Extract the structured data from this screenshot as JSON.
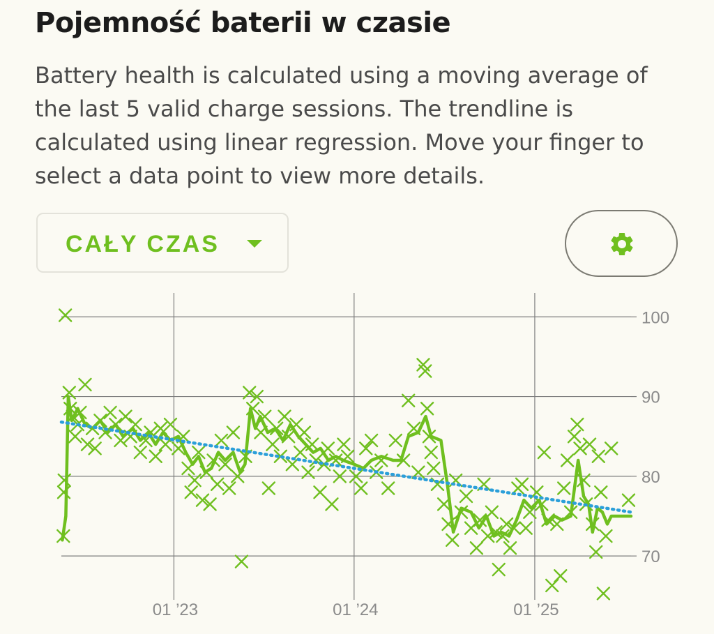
{
  "header": {
    "title": "Pojemność baterii w czasie",
    "description": "Battery health is calculated using a moving average of the last 5 valid charge sessions. The trendline is calculated using linear regression. Move your finger to select a data point to view more details."
  },
  "controls": {
    "range_label": "CAŁY CZAS",
    "range_icon": "caret-down-icon",
    "settings_icon": "gear-icon"
  },
  "colors": {
    "accent": "#6fbf1f",
    "trend": "#2b9fd9",
    "grid": "#7d7d7d",
    "background": "#fbfaf3"
  },
  "chart_data": {
    "type": "line",
    "x_axis": {
      "type": "date",
      "min": "2022-05-18",
      "max": "2025-07-15",
      "ticks": [
        {
          "date": "2023-01-01",
          "label": "01 ’23"
        },
        {
          "date": "2024-01-01",
          "label": "01 ’24"
        },
        {
          "date": "2025-01-01",
          "label": "01 ’25"
        }
      ]
    },
    "y_axis": {
      "position": "right",
      "ylim": [
        64.5,
        103
      ],
      "ticks": [
        100,
        90,
        80,
        70
      ],
      "grid": true
    },
    "series": [
      {
        "kind": "scatter",
        "marker": "x",
        "color": "#6fbf1f",
        "points": [
          [
            "2022-05-26",
            100.2
          ],
          [
            "2022-05-22",
            72.5
          ],
          [
            "2022-05-23",
            78.0
          ],
          [
            "2022-05-24",
            79.5
          ],
          [
            "2022-06-03",
            90.5
          ],
          [
            "2022-06-05",
            88.5
          ],
          [
            "2022-06-10",
            87.5
          ],
          [
            "2022-06-15",
            85.0
          ],
          [
            "2022-06-20",
            86.5
          ],
          [
            "2022-06-25",
            88.0
          ],
          [
            "2022-07-05",
            91.5
          ],
          [
            "2022-07-10",
            84.0
          ],
          [
            "2022-07-20",
            86.0
          ],
          [
            "2022-07-25",
            83.5
          ],
          [
            "2022-08-05",
            87.0
          ],
          [
            "2022-08-15",
            85.5
          ],
          [
            "2022-08-25",
            88.0
          ],
          [
            "2022-09-05",
            86.5
          ],
          [
            "2022-09-15",
            84.5
          ],
          [
            "2022-09-25",
            87.5
          ],
          [
            "2022-10-05",
            85.0
          ],
          [
            "2022-10-15",
            86.5
          ],
          [
            "2022-10-25",
            83.0
          ],
          [
            "2022-11-05",
            84.5
          ],
          [
            "2022-11-15",
            85.5
          ],
          [
            "2022-11-25",
            82.5
          ],
          [
            "2022-12-05",
            86.0
          ],
          [
            "2022-12-15",
            84.0
          ],
          [
            "2022-12-25",
            86.5
          ],
          [
            "2023-01-10",
            83.5
          ],
          [
            "2023-01-20",
            85.0
          ],
          [
            "2023-01-30",
            81.0
          ],
          [
            "2023-02-05",
            78.0
          ],
          [
            "2023-02-12",
            79.5
          ],
          [
            "2023-02-20",
            83.0
          ],
          [
            "2023-02-28",
            77.0
          ],
          [
            "2023-03-08",
            80.5
          ],
          [
            "2023-03-15",
            76.5
          ],
          [
            "2023-03-22",
            82.0
          ],
          [
            "2023-03-30",
            79.0
          ],
          [
            "2023-04-07",
            84.5
          ],
          [
            "2023-04-15",
            81.5
          ],
          [
            "2023-04-23",
            78.5
          ],
          [
            "2023-05-01",
            85.5
          ],
          [
            "2023-05-10",
            80.0
          ],
          [
            "2023-05-18",
            69.3
          ],
          [
            "2023-05-26",
            82.5
          ],
          [
            "2023-06-03",
            90.5
          ],
          [
            "2023-06-10",
            88.5
          ],
          [
            "2023-06-18",
            90.0
          ],
          [
            "2023-06-26",
            85.5
          ],
          [
            "2023-07-04",
            87.5
          ],
          [
            "2023-07-12",
            78.5
          ],
          [
            "2023-07-20",
            84.0
          ],
          [
            "2023-07-28",
            86.0
          ],
          [
            "2023-08-05",
            82.5
          ],
          [
            "2023-08-13",
            87.5
          ],
          [
            "2023-08-21",
            85.0
          ],
          [
            "2023-08-29",
            81.5
          ],
          [
            "2023-09-06",
            86.5
          ],
          [
            "2023-09-14",
            83.0
          ],
          [
            "2023-09-22",
            85.5
          ],
          [
            "2023-09-30",
            80.5
          ],
          [
            "2023-10-08",
            84.0
          ],
          [
            "2023-10-16",
            82.0
          ],
          [
            "2023-10-24",
            78.0
          ],
          [
            "2023-11-01",
            81.5
          ],
          [
            "2023-11-09",
            83.5
          ],
          [
            "2023-11-17",
            76.5
          ],
          [
            "2023-11-25",
            82.0
          ],
          [
            "2023-12-03",
            80.0
          ],
          [
            "2023-12-11",
            84.0
          ],
          [
            "2023-12-19",
            82.5
          ],
          [
            "2024-01-05",
            80.0
          ],
          [
            "2024-01-15",
            78.5
          ],
          [
            "2024-01-25",
            83.5
          ],
          [
            "2024-02-05",
            84.5
          ],
          [
            "2024-02-15",
            80.5
          ],
          [
            "2024-02-25",
            82.0
          ],
          [
            "2024-03-10",
            78.5
          ],
          [
            "2024-03-25",
            84.5
          ],
          [
            "2024-04-10",
            82.0
          ],
          [
            "2024-04-20",
            89.5
          ],
          [
            "2024-05-01",
            86.0
          ],
          [
            "2024-05-10",
            80.5
          ],
          [
            "2024-05-20",
            94.0
          ],
          [
            "2024-05-24",
            93.2
          ],
          [
            "2024-05-28",
            88.5
          ],
          [
            "2024-06-01",
            85.0
          ],
          [
            "2024-06-05",
            83.0
          ],
          [
            "2024-06-10",
            81.0
          ],
          [
            "2024-06-18",
            79.0
          ],
          [
            "2024-07-01",
            76.5
          ],
          [
            "2024-07-10",
            74.0
          ],
          [
            "2024-07-18",
            72.0
          ],
          [
            "2024-07-25",
            79.5
          ],
          [
            "2024-08-05",
            75.5
          ],
          [
            "2024-08-15",
            77.5
          ],
          [
            "2024-08-25",
            73.5
          ],
          [
            "2024-09-05",
            71.0
          ],
          [
            "2024-09-12",
            74.5
          ],
          [
            "2024-09-20",
            79.0
          ],
          [
            "2024-09-28",
            72.5
          ],
          [
            "2024-10-06",
            75.5
          ],
          [
            "2024-10-14",
            73.0
          ],
          [
            "2024-10-20",
            68.3
          ],
          [
            "2024-10-28",
            72.5
          ],
          [
            "2024-11-05",
            74.0
          ],
          [
            "2024-11-12",
            71.0
          ],
          [
            "2024-11-20",
            73.5
          ],
          [
            "2024-11-28",
            78.5
          ],
          [
            "2024-12-06",
            79.0
          ],
          [
            "2024-12-14",
            73.5
          ],
          [
            "2024-12-22",
            75.5
          ],
          [
            "2025-01-05",
            78.0
          ],
          [
            "2025-01-15",
            76.5
          ],
          [
            "2025-01-20",
            83.0
          ],
          [
            "2025-01-28",
            74.5
          ],
          [
            "2025-02-05",
            66.3
          ],
          [
            "2025-02-15",
            74.0
          ],
          [
            "2025-02-22",
            67.5
          ],
          [
            "2025-03-01",
            78.5
          ],
          [
            "2025-03-08",
            82.0
          ],
          [
            "2025-03-15",
            75.5
          ],
          [
            "2025-03-22",
            85.0
          ],
          [
            "2025-03-28",
            86.5
          ],
          [
            "2025-04-03",
            83.5
          ],
          [
            "2025-04-10",
            79.5
          ],
          [
            "2025-04-15",
            76.5
          ],
          [
            "2025-04-22",
            84.0
          ],
          [
            "2025-04-28",
            74.0
          ],
          [
            "2025-05-05",
            70.5
          ],
          [
            "2025-05-10",
            82.5
          ],
          [
            "2025-05-15",
            78.0
          ],
          [
            "2025-05-20",
            65.3
          ],
          [
            "2025-05-25",
            72.5
          ],
          [
            "2025-06-05",
            83.5
          ],
          [
            "2025-07-10",
            77.0
          ]
        ]
      },
      {
        "kind": "line",
        "color": "#6fbf1f",
        "points": [
          [
            "2022-05-20",
            72.0
          ],
          [
            "2022-05-27",
            75.0
          ],
          [
            "2022-06-01",
            90.0
          ],
          [
            "2022-06-08",
            87.0
          ],
          [
            "2022-06-20",
            88.5
          ],
          [
            "2022-07-05",
            86.5
          ],
          [
            "2022-07-20",
            86.0
          ],
          [
            "2022-08-05",
            87.0
          ],
          [
            "2022-08-20",
            85.5
          ],
          [
            "2022-09-05",
            86.5
          ],
          [
            "2022-09-20",
            85.0
          ],
          [
            "2022-10-10",
            86.0
          ],
          [
            "2022-10-25",
            84.5
          ],
          [
            "2022-11-10",
            85.5
          ],
          [
            "2022-11-25",
            84.0
          ],
          [
            "2022-12-10",
            85.5
          ],
          [
            "2022-12-25",
            84.5
          ],
          [
            "2023-01-10",
            85.0
          ],
          [
            "2023-01-25",
            83.0
          ],
          [
            "2023-02-08",
            81.5
          ],
          [
            "2023-02-20",
            82.5
          ],
          [
            "2023-03-05",
            80.5
          ],
          [
            "2023-03-18",
            81.0
          ],
          [
            "2023-04-01",
            83.0
          ],
          [
            "2023-04-15",
            82.0
          ],
          [
            "2023-05-01",
            83.0
          ],
          [
            "2023-05-15",
            80.5
          ],
          [
            "2023-05-25",
            81.5
          ],
          [
            "2023-06-05",
            88.5
          ],
          [
            "2023-06-15",
            86.0
          ],
          [
            "2023-06-25",
            87.5
          ],
          [
            "2023-07-10",
            85.5
          ],
          [
            "2023-07-25",
            86.0
          ],
          [
            "2023-08-10",
            84.5
          ],
          [
            "2023-08-25",
            86.5
          ],
          [
            "2023-09-10",
            85.0
          ],
          [
            "2023-09-25",
            84.0
          ],
          [
            "2023-10-10",
            83.0
          ],
          [
            "2023-10-25",
            83.5
          ],
          [
            "2023-11-10",
            82.0
          ],
          [
            "2023-11-25",
            82.5
          ],
          [
            "2023-12-10",
            82.0
          ],
          [
            "2024-01-01",
            81.5
          ],
          [
            "2024-01-20",
            81.0
          ],
          [
            "2024-02-05",
            82.0
          ],
          [
            "2024-02-25",
            82.5
          ],
          [
            "2024-03-20",
            82.0
          ],
          [
            "2024-04-05",
            82.0
          ],
          [
            "2024-04-20",
            85.0
          ],
          [
            "2024-05-10",
            85.5
          ],
          [
            "2024-05-25",
            87.5
          ],
          [
            "2024-06-05",
            85.0
          ],
          [
            "2024-06-25",
            84.5
          ],
          [
            "2024-07-08",
            79.0
          ],
          [
            "2024-07-20",
            73.0
          ],
          [
            "2024-08-05",
            76.0
          ],
          [
            "2024-08-25",
            75.5
          ],
          [
            "2024-09-10",
            73.5
          ],
          [
            "2024-09-25",
            75.0
          ],
          [
            "2024-10-10",
            72.5
          ],
          [
            "2024-10-25",
            73.0
          ],
          [
            "2024-11-10",
            72.5
          ],
          [
            "2024-11-25",
            74.5
          ],
          [
            "2024-12-10",
            77.0
          ],
          [
            "2024-12-25",
            76.0
          ],
          [
            "2025-01-10",
            77.0
          ],
          [
            "2025-01-25",
            74.0
          ],
          [
            "2025-02-10",
            75.0
          ],
          [
            "2025-02-25",
            74.5
          ],
          [
            "2025-03-15",
            75.0
          ],
          [
            "2025-03-30",
            82.0
          ],
          [
            "2025-04-10",
            77.5
          ],
          [
            "2025-04-20",
            76.5
          ],
          [
            "2025-04-28",
            73.0
          ],
          [
            "2025-05-08",
            76.0
          ],
          [
            "2025-05-18",
            75.5
          ],
          [
            "2025-05-28",
            74.0
          ],
          [
            "2025-06-05",
            75.0
          ],
          [
            "2025-07-15",
            75.0
          ]
        ]
      },
      {
        "kind": "trendline",
        "style": "dotted",
        "color": "#2b9fd9",
        "points": [
          [
            "2022-05-18",
            86.8
          ],
          [
            "2025-07-15",
            75.5
          ]
        ]
      }
    ]
  }
}
